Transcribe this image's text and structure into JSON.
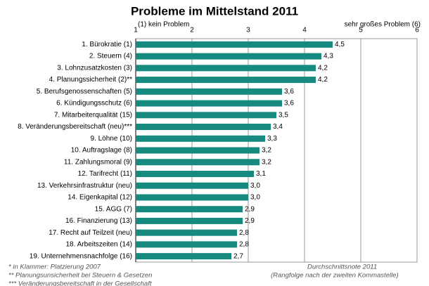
{
  "chart_data": {
    "type": "bar",
    "orientation": "horizontal",
    "title": "Probleme im Mittelstand 2011",
    "scale_left_label": "(1) kein Problem",
    "scale_right_label": "sehr großes Problem (6)",
    "categories": [
      "1. Bürokratie (1)",
      "2. Steuern (4)",
      "3. Lohnzusatzkosten (3)",
      "4. Planungssicherheit (2)**",
      "5. Berufsgenossenschaften (5)",
      "6. Kündigungsschutz (6)",
      "7. Mitarbeiterqualität (15)",
      "8. Veränderungsbereitschaft (neu)***",
      "9. Löhne (10)",
      "10. Auftragslage (8)",
      "11. Zahlungsmoral (9)",
      "12. Tarifrecht (11)",
      "13. Verkehrsinfrastruktur (neu)",
      "14. Eigenkapital (12)",
      "15. AGG (7)",
      "16. Finanzierung (13)",
      "17. Recht auf Teilzeit (neu)",
      "18. Arbeitszeiten (14)",
      "19. Unternehmensnachfolge (16)"
    ],
    "values": [
      4.5,
      4.3,
      4.2,
      4.2,
      3.6,
      3.6,
      3.5,
      3.4,
      3.3,
      3.2,
      3.2,
      3.1,
      3.0,
      3.0,
      2.9,
      2.9,
      2.8,
      2.8,
      2.7
    ],
    "value_labels": [
      "4,5",
      "4,3",
      "4,2",
      "4,2",
      "3,6",
      "3,6",
      "3,5",
      "3,4",
      "3,3",
      "3,2",
      "3,2",
      "3,1",
      "3,0",
      "3,0",
      "2,9",
      "2,9",
      "2,8",
      "2,8",
      "2,7"
    ],
    "color": "#178a7f",
    "xlim": [
      1,
      6
    ],
    "xticks": [
      1,
      2,
      3,
      4,
      5,
      6
    ],
    "grid": true,
    "footnotes": [
      "* in Klammer: Platzierung 2007",
      "** Planungsunsicherheit bei Steuern & Gesetzen",
      "*** Veränderungsbereitschaft in der Gesellschaft"
    ],
    "source_notes": [
      "Durchschnittsnote 2011",
      "(Rangfolge nach der zweiten Kommastelle)"
    ]
  }
}
